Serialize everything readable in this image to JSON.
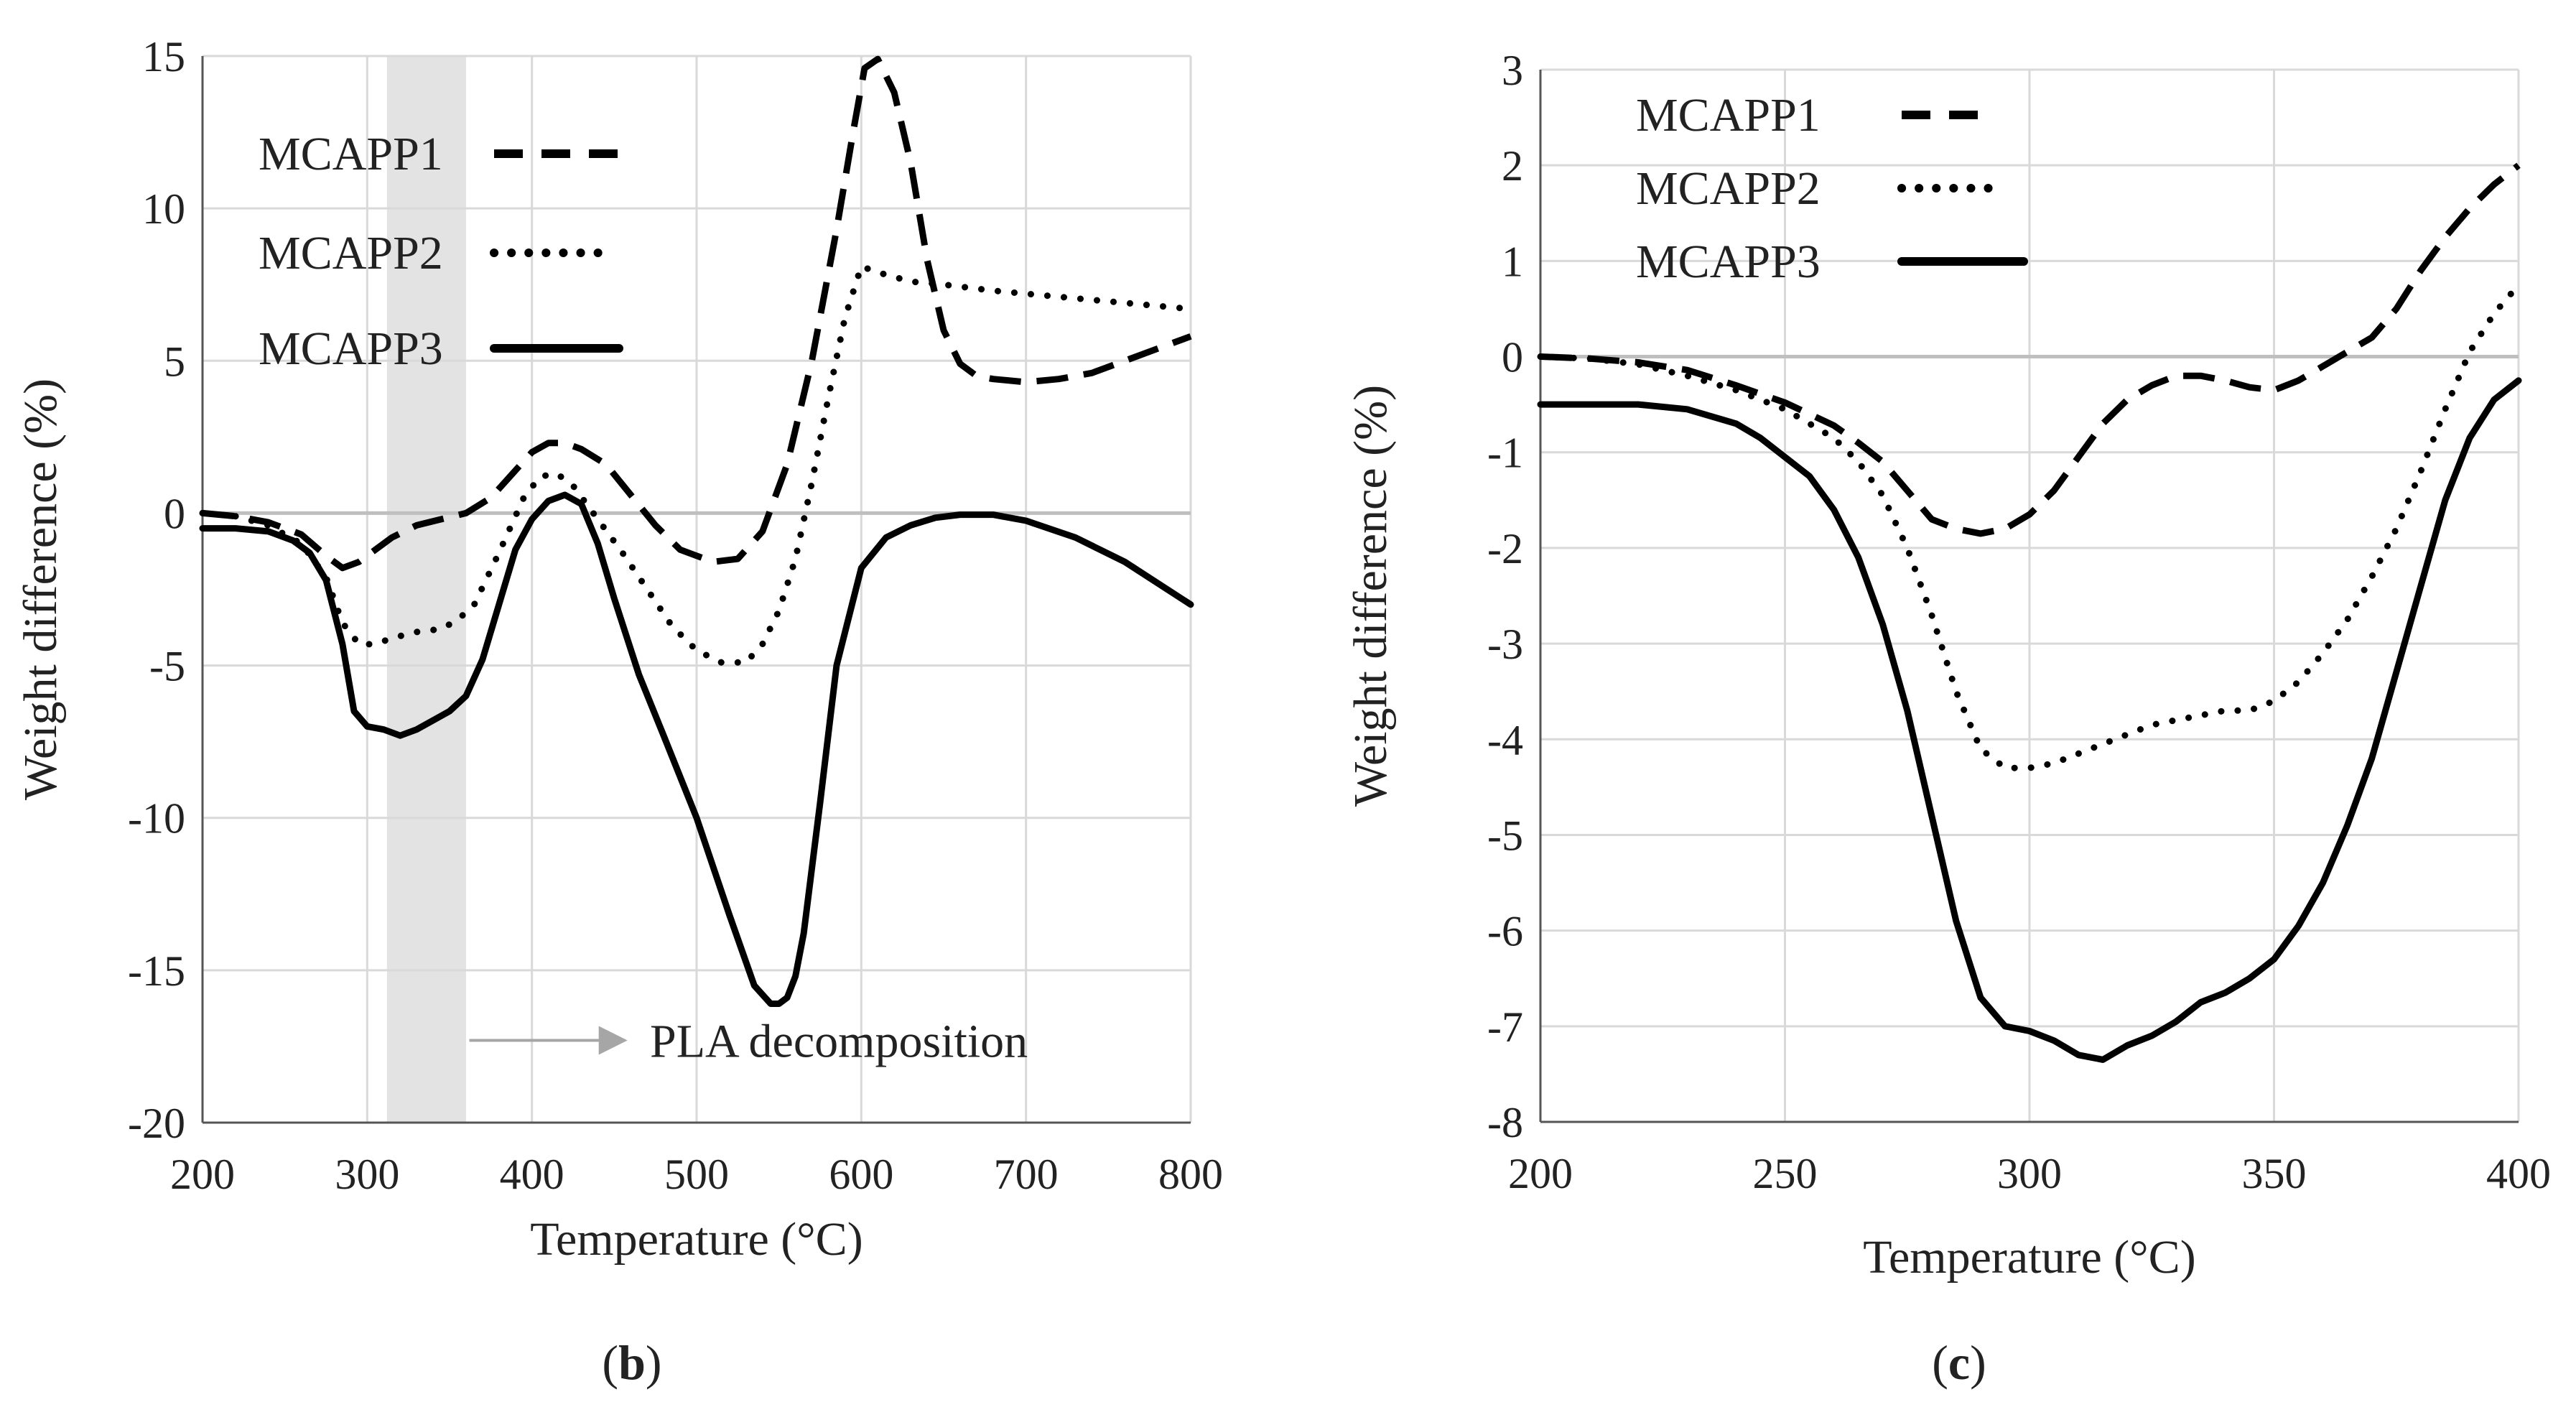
{
  "figure": {
    "background": "#ffffff",
    "line_color": "#000000",
    "grid_color": "#d9d9d9",
    "zero_line_color": "#bfbfbf",
    "highlight_color": "#e3e3e3",
    "arrow_color": "#a6a6a6"
  },
  "chart_data": [
    {
      "type": "line",
      "panel_label_open": "(",
      "panel_label": "b",
      "panel_label_close": ")",
      "xlabel": "Temperature (°C)",
      "ylabel": "Weight difference (%)",
      "xlim": [
        200,
        800
      ],
      "ylim": [
        -20,
        15
      ],
      "x_ticks": [
        200,
        300,
        400,
        500,
        600,
        700,
        800
      ],
      "y_ticks": [
        15,
        10,
        5,
        0,
        -5,
        -10,
        -15,
        -20
      ],
      "x_tick_labels": [
        "200",
        "300",
        "400",
        "500",
        "600",
        "700",
        "800"
      ],
      "y_tick_labels": [
        "15",
        "10",
        "5",
        "0",
        "-5",
        "-10",
        "-15",
        "-20"
      ],
      "grid": true,
      "legend_position": "top-left",
      "highlight_band": {
        "x0": 312,
        "x1": 360
      },
      "annotation": {
        "text": "PLA decomposition",
        "arrow_from_x": 362,
        "arrow_to_x": 458,
        "y": -17.3
      },
      "series": [
        {
          "name": "MCAPP1",
          "style": "dashed",
          "x": [
            200,
            220,
            240,
            260,
            275,
            285,
            295,
            305,
            315,
            330,
            345,
            360,
            375,
            390,
            400,
            410,
            420,
            430,
            445,
            460,
            475,
            490,
            510,
            525,
            540,
            555,
            570,
            585,
            595,
            602,
            610,
            620,
            630,
            640,
            650,
            660,
            670,
            680,
            700,
            720,
            740,
            760,
            780,
            800
          ],
          "y": [
            0,
            -0.1,
            -0.3,
            -0.7,
            -1.4,
            -1.8,
            -1.6,
            -1.2,
            -0.8,
            -0.4,
            -0.2,
            0,
            0.5,
            1.4,
            2,
            2.3,
            2.3,
            2.1,
            1.6,
            0.6,
            -0.4,
            -1.2,
            -1.6,
            -1.5,
            -0.6,
            1.6,
            5,
            9.3,
            12.5,
            14.6,
            14.9,
            13.8,
            11.5,
            8.3,
            6,
            4.9,
            4.5,
            4.4,
            4.3,
            4.4,
            4.6,
            5,
            5.4,
            5.8
          ]
        },
        {
          "name": "MCAPP2",
          "style": "dotted",
          "x": [
            200,
            220,
            240,
            260,
            275,
            285,
            295,
            305,
            315,
            330,
            345,
            355,
            365,
            380,
            395,
            405,
            415,
            425,
            440,
            455,
            470,
            485,
            500,
            515,
            530,
            540,
            550,
            560,
            570,
            580,
            590,
            600,
            610,
            630,
            650,
            680,
            720,
            760,
            800
          ],
          "y": [
            0,
            -0.1,
            -0.4,
            -1,
            -2.1,
            -3.6,
            -4.3,
            -4.3,
            -4.1,
            -3.9,
            -3.8,
            -3.5,
            -3,
            -1.3,
            0.5,
            1.2,
            1.3,
            0.9,
            -0.2,
            -1.3,
            -2.5,
            -3.7,
            -4.5,
            -4.9,
            -4.9,
            -4.3,
            -3.2,
            -1.5,
            1,
            3.8,
            6.4,
            8.1,
            7.9,
            7.6,
            7.5,
            7.3,
            7.1,
            6.9,
            6.7
          ]
        },
        {
          "name": "MCAPP3",
          "style": "solid",
          "x": [
            200,
            220,
            240,
            255,
            265,
            275,
            285,
            292,
            300,
            310,
            320,
            330,
            340,
            350,
            360,
            370,
            380,
            390,
            400,
            410,
            420,
            430,
            440,
            450,
            465,
            480,
            500,
            520,
            535,
            545,
            550,
            555,
            560,
            565,
            575,
            585,
            600,
            615,
            630,
            645,
            660,
            680,
            700,
            730,
            760,
            800
          ],
          "y": [
            -0.5,
            -0.5,
            -0.6,
            -0.9,
            -1.3,
            -2.2,
            -4.3,
            -6.5,
            -7,
            -7.1,
            -7.3,
            -7.1,
            -6.8,
            -6.5,
            -6,
            -4.8,
            -3,
            -1.2,
            -0.2,
            0.4,
            0.6,
            0.3,
            -1,
            -2.8,
            -5.3,
            -7.3,
            -10,
            -13.2,
            -15.5,
            -16.1,
            -16.1,
            -15.9,
            -15.2,
            -13.8,
            -9.5,
            -5,
            -1.8,
            -0.8,
            -0.4,
            -0.15,
            -0.05,
            -0.05,
            -0.25,
            -0.8,
            -1.6,
            -3
          ]
        }
      ]
    },
    {
      "type": "line",
      "panel_label_open": "(",
      "panel_label": "c",
      "panel_label_close": ")",
      "xlabel": "Temperature (°C)",
      "ylabel": "Weight difference (%)",
      "xlim": [
        200,
        400
      ],
      "ylim": [
        -8,
        3
      ],
      "x_ticks": [
        200,
        250,
        300,
        350,
        400
      ],
      "y_ticks": [
        3,
        2,
        1,
        0,
        -1,
        -2,
        -3,
        -4,
        -5,
        -6,
        -7,
        -8
      ],
      "x_tick_labels": [
        "200",
        "250",
        "300",
        "350",
        "400"
      ],
      "y_tick_labels": [
        "3",
        "2",
        "1",
        "0",
        "-1",
        "-2",
        "-3",
        "-4",
        "-5",
        "-6",
        "-7",
        "-8"
      ],
      "grid": true,
      "legend_position": "top-left",
      "series": [
        {
          "name": "MCAPP1",
          "style": "dashed",
          "x": [
            200,
            210,
            220,
            230,
            240,
            250,
            260,
            265,
            270,
            275,
            280,
            285,
            290,
            295,
            300,
            305,
            310,
            315,
            320,
            325,
            330,
            335,
            340,
            345,
            350,
            355,
            360,
            365,
            370,
            375,
            380,
            385,
            390,
            395,
            400
          ],
          "y": [
            0,
            -0.02,
            -0.06,
            -0.14,
            -0.3,
            -0.48,
            -0.72,
            -0.9,
            -1.1,
            -1.4,
            -1.7,
            -1.8,
            -1.85,
            -1.8,
            -1.65,
            -1.4,
            -1.05,
            -0.7,
            -0.45,
            -0.3,
            -0.2,
            -0.2,
            -0.25,
            -0.32,
            -0.35,
            -0.25,
            -0.1,
            0.05,
            0.2,
            0.5,
            0.9,
            1.25,
            1.55,
            1.8,
            2
          ]
        },
        {
          "name": "MCAPP2",
          "style": "dotted",
          "x": [
            200,
            210,
            220,
            230,
            240,
            250,
            260,
            265,
            270,
            275,
            280,
            285,
            290,
            295,
            300,
            305,
            310,
            315,
            320,
            325,
            330,
            335,
            340,
            345,
            350,
            355,
            360,
            365,
            370,
            375,
            380,
            385,
            390,
            395,
            400
          ],
          "y": [
            0,
            -0.02,
            -0.08,
            -0.2,
            -0.35,
            -0.55,
            -0.85,
            -1.1,
            -1.45,
            -2,
            -2.7,
            -3.5,
            -4.1,
            -4.3,
            -4.3,
            -4.25,
            -4.15,
            -4.05,
            -3.95,
            -3.85,
            -3.8,
            -3.75,
            -3.7,
            -3.7,
            -3.6,
            -3.4,
            -3.1,
            -2.75,
            -2.3,
            -1.8,
            -1.2,
            -0.55,
            0.05,
            0.45,
            0.75
          ]
        },
        {
          "name": "MCAPP3",
          "style": "solid",
          "x": [
            200,
            210,
            220,
            230,
            240,
            245,
            250,
            255,
            260,
            265,
            270,
            275,
            280,
            285,
            290,
            295,
            300,
            305,
            310,
            315,
            320,
            325,
            330,
            335,
            340,
            345,
            350,
            355,
            360,
            365,
            370,
            375,
            380,
            385,
            390,
            395,
            400
          ],
          "y": [
            -0.5,
            -0.5,
            -0.5,
            -0.55,
            -0.7,
            -0.85,
            -1.05,
            -1.25,
            -1.6,
            -2.1,
            -2.8,
            -3.7,
            -4.8,
            -5.9,
            -6.7,
            -7,
            -7.05,
            -7.15,
            -7.3,
            -7.35,
            -7.2,
            -7.1,
            -6.95,
            -6.75,
            -6.65,
            -6.5,
            -6.3,
            -5.95,
            -5.5,
            -4.9,
            -4.2,
            -3.3,
            -2.4,
            -1.5,
            -0.85,
            -0.45,
            -0.25
          ]
        }
      ]
    }
  ]
}
